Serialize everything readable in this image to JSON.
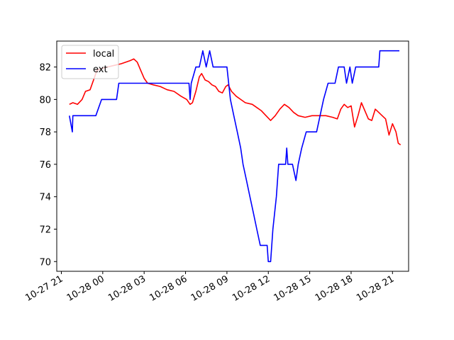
{
  "chart_data": {
    "type": "line",
    "title": "",
    "xlabel": "",
    "ylabel": "",
    "x_axis_kind": "datetime",
    "xlim": [
      "2023-10-27 20:40",
      "2023-10-28 22:10"
    ],
    "ylim": [
      69.4,
      83.6
    ],
    "x_tick_labels": [
      {
        "label": "10-27 21",
        "t": "2023-10-27 21:00"
      },
      {
        "label": "10-28 00",
        "t": "2023-10-28 00:00"
      },
      {
        "label": "10-28 03",
        "t": "2023-10-28 03:00"
      },
      {
        "label": "10-28 06",
        "t": "2023-10-28 06:00"
      },
      {
        "label": "10-28 09",
        "t": "2023-10-28 09:00"
      },
      {
        "label": "10-28 12",
        "t": "2023-10-28 12:00"
      },
      {
        "label": "10-28 15",
        "t": "2023-10-28 15:00"
      },
      {
        "label": "10-28 18",
        "t": "2023-10-28 18:00"
      },
      {
        "label": "10-28 21",
        "t": "2023-10-28 21:00"
      }
    ],
    "y_ticks": [
      70,
      72,
      74,
      76,
      78,
      80,
      82
    ],
    "legend_position": "upper-left",
    "grid": false,
    "series": [
      {
        "name": "local",
        "color": "#ff0000",
        "points": [
          [
            "2023-10-27 21:35",
            79.7
          ],
          [
            "2023-10-27 21:50",
            79.8
          ],
          [
            "2023-10-27 22:10",
            79.7
          ],
          [
            "2023-10-27 22:30",
            80.0
          ],
          [
            "2023-10-27 22:45",
            80.5
          ],
          [
            "2023-10-27 23:05",
            80.6
          ],
          [
            "2023-10-27 23:20",
            81.2
          ],
          [
            "2023-10-27 23:35",
            81.8
          ],
          [
            "2023-10-27 23:55",
            81.9
          ],
          [
            "2023-10-28 00:20",
            82.0
          ],
          [
            "2023-10-28 00:50",
            82.1
          ],
          [
            "2023-10-28 01:20",
            82.2
          ],
          [
            "2023-10-28 01:40",
            82.3
          ],
          [
            "2023-10-28 02:00",
            82.4
          ],
          [
            "2023-10-28 02:15",
            82.5
          ],
          [
            "2023-10-28 02:30",
            82.3
          ],
          [
            "2023-10-28 02:45",
            81.8
          ],
          [
            "2023-10-28 03:00",
            81.3
          ],
          [
            "2023-10-28 03:15",
            81.0
          ],
          [
            "2023-10-28 03:40",
            80.9
          ],
          [
            "2023-10-28 04:10",
            80.8
          ],
          [
            "2023-10-28 04:40",
            80.6
          ],
          [
            "2023-10-28 05:10",
            80.5
          ],
          [
            "2023-10-28 05:40",
            80.2
          ],
          [
            "2023-10-28 06:05",
            80.0
          ],
          [
            "2023-10-28 06:20",
            79.7
          ],
          [
            "2023-10-28 06:30",
            79.8
          ],
          [
            "2023-10-28 06:45",
            80.5
          ],
          [
            "2023-10-28 07:00",
            81.4
          ],
          [
            "2023-10-28 07:10",
            81.6
          ],
          [
            "2023-10-28 07:25",
            81.2
          ],
          [
            "2023-10-28 07:40",
            81.1
          ],
          [
            "2023-10-28 07:55",
            80.9
          ],
          [
            "2023-10-28 08:10",
            80.8
          ],
          [
            "2023-10-28 08:25",
            80.5
          ],
          [
            "2023-10-28 08:40",
            80.4
          ],
          [
            "2023-10-28 08:55",
            80.8
          ],
          [
            "2023-10-28 09:05",
            80.9
          ],
          [
            "2023-10-28 09:20",
            80.5
          ],
          [
            "2023-10-28 09:40",
            80.2
          ],
          [
            "2023-10-28 10:00",
            80.0
          ],
          [
            "2023-10-28 10:20",
            79.8
          ],
          [
            "2023-10-28 10:50",
            79.7
          ],
          [
            "2023-10-28 11:10",
            79.5
          ],
          [
            "2023-10-28 11:30",
            79.3
          ],
          [
            "2023-10-28 11:50",
            79.0
          ],
          [
            "2023-10-28 12:10",
            78.7
          ],
          [
            "2023-10-28 12:30",
            79.0
          ],
          [
            "2023-10-28 12:50",
            79.4
          ],
          [
            "2023-10-28 13:10",
            79.7
          ],
          [
            "2023-10-28 13:30",
            79.5
          ],
          [
            "2023-10-28 13:50",
            79.2
          ],
          [
            "2023-10-28 14:10",
            79.0
          ],
          [
            "2023-10-28 14:40",
            78.9
          ],
          [
            "2023-10-28 15:10",
            79.0
          ],
          [
            "2023-10-28 15:40",
            79.0
          ],
          [
            "2023-10-28 16:10",
            79.0
          ],
          [
            "2023-10-28 16:40",
            78.9
          ],
          [
            "2023-10-28 17:00",
            78.8
          ],
          [
            "2023-10-28 17:15",
            79.4
          ],
          [
            "2023-10-28 17:30",
            79.7
          ],
          [
            "2023-10-28 17:45",
            79.5
          ],
          [
            "2023-10-28 18:00",
            79.6
          ],
          [
            "2023-10-28 18:15",
            78.3
          ],
          [
            "2023-10-28 18:30",
            79.0
          ],
          [
            "2023-10-28 18:45",
            79.8
          ],
          [
            "2023-10-28 19:00",
            79.3
          ],
          [
            "2023-10-28 19:15",
            78.8
          ],
          [
            "2023-10-28 19:30",
            78.7
          ],
          [
            "2023-10-28 19:45",
            79.4
          ],
          [
            "2023-10-28 20:00",
            79.2
          ],
          [
            "2023-10-28 20:15",
            79.0
          ],
          [
            "2023-10-28 20:30",
            78.8
          ],
          [
            "2023-10-28 20:45",
            77.8
          ],
          [
            "2023-10-28 21:00",
            78.5
          ],
          [
            "2023-10-28 21:15",
            78.0
          ],
          [
            "2023-10-28 21:25",
            77.3
          ],
          [
            "2023-10-28 21:35",
            77.2
          ]
        ]
      },
      {
        "name": "ext",
        "color": "#0000ff",
        "points": [
          [
            "2023-10-27 21:35",
            79
          ],
          [
            "2023-10-27 21:48",
            78
          ],
          [
            "2023-10-27 21:50",
            79
          ],
          [
            "2023-10-27 23:30",
            79
          ],
          [
            "2023-10-27 23:55",
            80
          ],
          [
            "2023-10-28 01:00",
            80
          ],
          [
            "2023-10-28 01:10",
            81
          ],
          [
            "2023-10-28 06:15",
            81
          ],
          [
            "2023-10-28 06:20",
            80
          ],
          [
            "2023-10-28 06:25",
            81
          ],
          [
            "2023-10-28 06:45",
            82
          ],
          [
            "2023-10-28 07:00",
            82
          ],
          [
            "2023-10-28 07:15",
            83
          ],
          [
            "2023-10-28 07:30",
            82
          ],
          [
            "2023-10-28 07:45",
            83
          ],
          [
            "2023-10-28 08:00",
            82
          ],
          [
            "2023-10-28 09:00",
            82
          ],
          [
            "2023-10-28 09:15",
            80
          ],
          [
            "2023-10-28 09:30",
            79
          ],
          [
            "2023-10-28 09:45",
            78
          ],
          [
            "2023-10-28 10:00",
            77
          ],
          [
            "2023-10-28 10:10",
            76
          ],
          [
            "2023-10-28 10:25",
            75
          ],
          [
            "2023-10-28 10:40",
            74
          ],
          [
            "2023-10-28 10:55",
            73
          ],
          [
            "2023-10-28 11:10",
            72
          ],
          [
            "2023-10-28 11:25",
            71
          ],
          [
            "2023-10-28 11:55",
            71
          ],
          [
            "2023-10-28 12:00",
            70
          ],
          [
            "2023-10-28 12:10",
            70
          ],
          [
            "2023-10-28 12:20",
            72
          ],
          [
            "2023-10-28 12:35",
            74
          ],
          [
            "2023-10-28 12:45",
            76
          ],
          [
            "2023-10-28 13:15",
            76
          ],
          [
            "2023-10-28 13:20",
            77
          ],
          [
            "2023-10-28 13:25",
            76
          ],
          [
            "2023-10-28 13:45",
            76
          ],
          [
            "2023-10-28 14:00",
            75
          ],
          [
            "2023-10-28 14:10",
            76
          ],
          [
            "2023-10-28 14:25",
            77
          ],
          [
            "2023-10-28 14:45",
            78
          ],
          [
            "2023-10-28 15:30",
            78
          ],
          [
            "2023-10-28 15:45",
            79
          ],
          [
            "2023-10-28 16:00",
            80
          ],
          [
            "2023-10-28 16:20",
            81
          ],
          [
            "2023-10-28 16:50",
            81
          ],
          [
            "2023-10-28 17:05",
            82
          ],
          [
            "2023-10-28 17:30",
            82
          ],
          [
            "2023-10-28 17:40",
            81
          ],
          [
            "2023-10-28 17:55",
            82
          ],
          [
            "2023-10-28 18:05",
            81
          ],
          [
            "2023-10-28 18:20",
            82
          ],
          [
            "2023-10-28 20:00",
            82
          ],
          [
            "2023-10-28 20:05",
            83
          ],
          [
            "2023-10-28 21:30",
            83
          ]
        ]
      }
    ]
  }
}
